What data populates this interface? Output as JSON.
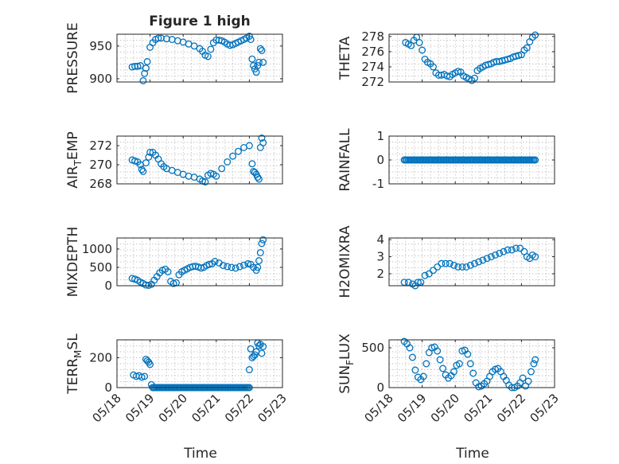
{
  "figure": {
    "title": "Figure 1 high",
    "marker_color": "#0072bd",
    "xlabel": "Time",
    "xticks": [
      "05/18",
      "05/19",
      "05/20",
      "05/21",
      "05/22",
      "05/23"
    ],
    "x_domain": [
      "05/18 00:00",
      "05/23 00:00"
    ]
  },
  "chart_data": [
    {
      "type": "scatter",
      "panel": "pressure",
      "ylabel": "PRESSURE",
      "ylim": [
        895,
        968
      ],
      "yticks": [
        900,
        950
      ],
      "grid": true,
      "x": [
        "05/18 11",
        "05/18 13",
        "05/18 15",
        "05/18 17",
        "05/18 19",
        "05/18 20",
        "05/18 21",
        "05/18 22",
        "05/19 00",
        "05/19 02",
        "05/19 04",
        "05/19 06",
        "05/19 08",
        "05/19 12",
        "05/19 16",
        "05/19 20",
        "05/20 00",
        "05/20 04",
        "05/20 08",
        "05/20 12",
        "05/20 14",
        "05/20 16",
        "05/20 18",
        "05/20 20",
        "05/20 22",
        "05/21 00",
        "05/21 02",
        "05/21 04",
        "05/21 06",
        "05/21 08",
        "05/21 10",
        "05/21 12",
        "05/21 14",
        "05/21 16",
        "05/21 18",
        "05/21 20",
        "05/21 22",
        "05/22 00",
        "05/22 01",
        "05/22 02",
        "05/22 03",
        "05/22 04",
        "05/22 05",
        "05/22 06",
        "05/22 07",
        "05/22 08",
        "05/22 09",
        "05/22 10"
      ],
      "y": [
        918,
        919,
        919,
        920,
        897,
        908,
        916,
        926,
        948,
        955,
        960,
        962,
        962,
        961,
        960,
        958,
        956,
        953,
        950,
        946,
        942,
        936,
        934,
        945,
        955,
        959,
        959,
        958,
        956,
        953,
        951,
        952,
        954,
        956,
        958,
        960,
        962,
        965,
        960,
        930,
        920,
        915,
        910,
        920,
        925,
        946,
        943,
        925
      ]
    },
    {
      "type": "scatter",
      "panel": "theta",
      "ylabel": "THETA",
      "ylim": [
        272,
        278.3
      ],
      "yticks": [
        272,
        274,
        276,
        278
      ],
      "grid": true,
      "x": [
        "05/18 12",
        "05/18 14",
        "05/18 16",
        "05/18 18",
        "05/18 20",
        "05/18 22",
        "05/19 00",
        "05/19 02",
        "05/19 04",
        "05/19 06",
        "05/19 08",
        "05/19 10",
        "05/19 12",
        "05/19 14",
        "05/19 16",
        "05/19 18",
        "05/19 20",
        "05/19 22",
        "05/20 00",
        "05/20 02",
        "05/20 04",
        "05/20 06",
        "05/20 08",
        "05/20 10",
        "05/20 12",
        "05/20 14",
        "05/20 16",
        "05/20 18",
        "05/20 20",
        "05/20 22",
        "05/21 00",
        "05/21 02",
        "05/21 04",
        "05/21 06",
        "05/21 08",
        "05/21 10",
        "05/21 12",
        "05/21 14",
        "05/21 16",
        "05/21 18",
        "05/21 20",
        "05/21 22",
        "05/22 00",
        "05/22 02",
        "05/22 04",
        "05/22 06",
        "05/22 08",
        "05/22 10"
      ],
      "y": [
        277.2,
        277.0,
        276.8,
        277.5,
        277.9,
        277.2,
        276.2,
        275.0,
        274.6,
        274.4,
        274.0,
        273.2,
        272.9,
        272.9,
        273.0,
        272.8,
        272.7,
        273.0,
        273.2,
        273.4,
        273.3,
        272.8,
        272.6,
        272.4,
        272.2,
        272.5,
        273.5,
        273.8,
        274.0,
        274.2,
        274.3,
        274.4,
        274.6,
        274.7,
        274.7,
        274.8,
        274.9,
        275.0,
        275.1,
        275.3,
        275.4,
        275.5,
        275.6,
        276.2,
        276.5,
        277.3,
        277.9,
        278.2
      ]
    },
    {
      "type": "scatter",
      "panel": "air_temp",
      "ylabel": "AIR_TEMP",
      "ylim": [
        268,
        273
      ],
      "yticks": [
        268,
        270,
        272
      ],
      "grid": true,
      "x": [
        "05/18 11",
        "05/18 13",
        "05/18 15",
        "05/18 17",
        "05/18 18",
        "05/18 19",
        "05/18 21",
        "05/18 23",
        "05/19 00",
        "05/19 02",
        "05/19 04",
        "05/19 06",
        "05/19 08",
        "05/19 10",
        "05/19 12",
        "05/19 16",
        "05/19 20",
        "05/20 00",
        "05/20 04",
        "05/20 08",
        "05/20 12",
        "05/20 14",
        "05/20 16",
        "05/20 18",
        "05/20 20",
        "05/20 22",
        "05/21 00",
        "05/21 04",
        "05/21 08",
        "05/21 12",
        "05/21 16",
        "05/21 20",
        "05/22 00",
        "05/22 02",
        "05/22 03",
        "05/22 04",
        "05/22 05",
        "05/22 06",
        "05/22 07",
        "05/22 08",
        "05/22 09",
        "05/22 10"
      ],
      "y": [
        270.5,
        270.4,
        270.3,
        270.0,
        269.5,
        269.3,
        270.2,
        270.8,
        271.3,
        271.3,
        271.0,
        270.6,
        270.1,
        269.8,
        269.6,
        269.4,
        269.2,
        269.0,
        268.8,
        268.7,
        268.5,
        268.3,
        268.2,
        268.9,
        269.1,
        269.0,
        268.8,
        269.6,
        270.3,
        270.9,
        271.4,
        271.8,
        272.0,
        270.1,
        269.3,
        269.2,
        269.0,
        268.7,
        268.5,
        271.8,
        272.8,
        272.3
      ]
    },
    {
      "type": "scatter",
      "panel": "rainfall",
      "ylabel": "RAINFALL",
      "ylim": [
        -1,
        1
      ],
      "yticks": [
        -1,
        0,
        1
      ],
      "grid": true,
      "x_range": [
        "05/18 11",
        "05/22 10"
      ],
      "sample_count": 96,
      "constant_value": 0
    },
    {
      "type": "scatter",
      "panel": "mixdepth",
      "ylabel": "MIXDEPTH",
      "ylim": [
        0,
        1300
      ],
      "yticks": [
        0,
        500,
        1000
      ],
      "grid": true,
      "x": [
        "05/18 11",
        "05/18 13",
        "05/18 15",
        "05/18 17",
        "05/18 19",
        "05/18 21",
        "05/18 23",
        "05/19 01",
        "05/19 03",
        "05/19 05",
        "05/19 07",
        "05/19 09",
        "05/19 11",
        "05/19 13",
        "05/19 15",
        "05/19 17",
        "05/19 19",
        "05/19 21",
        "05/19 23",
        "05/20 01",
        "05/20 03",
        "05/20 05",
        "05/20 07",
        "05/20 09",
        "05/20 11",
        "05/20 13",
        "05/20 15",
        "05/20 17",
        "05/20 19",
        "05/20 21",
        "05/20 23",
        "05/21 02",
        "05/21 05",
        "05/21 08",
        "05/21 11",
        "05/21 14",
        "05/21 17",
        "05/21 20",
        "05/21 23",
        "05/22 01",
        "05/22 03",
        "05/22 05",
        "05/22 06",
        "05/22 07",
        "05/22 08",
        "05/22 09",
        "05/22 10"
      ],
      "y": [
        200,
        180,
        150,
        100,
        60,
        20,
        10,
        40,
        150,
        250,
        350,
        420,
        450,
        380,
        120,
        60,
        80,
        300,
        380,
        420,
        460,
        500,
        520,
        530,
        510,
        480,
        500,
        550,
        580,
        600,
        660,
        620,
        550,
        520,
        500,
        480,
        520,
        560,
        600,
        580,
        500,
        420,
        500,
        680,
        900,
        1150,
        1250
      ]
    },
    {
      "type": "scatter",
      "panel": "h2omixra",
      "ylabel": "H2OMIXRA",
      "ylim": [
        1.3,
        4.1
      ],
      "yticks": [
        2,
        3,
        4
      ],
      "grid": true,
      "x": [
        "05/18 11",
        "05/18 14",
        "05/18 17",
        "05/18 19",
        "05/18 21",
        "05/18 23",
        "05/19 02",
        "05/19 05",
        "05/19 08",
        "05/19 11",
        "05/19 14",
        "05/19 17",
        "05/19 20",
        "05/19 23",
        "05/20 02",
        "05/20 05",
        "05/20 08",
        "05/20 11",
        "05/20 14",
        "05/20 17",
        "05/20 20",
        "05/20 23",
        "05/21 02",
        "05/21 05",
        "05/21 08",
        "05/21 11",
        "05/21 14",
        "05/21 17",
        "05/21 20",
        "05/21 23",
        "05/22 02",
        "05/22 04",
        "05/22 06",
        "05/22 08",
        "05/22 10"
      ],
      "y": [
        1.5,
        1.5,
        1.4,
        1.3,
        1.5,
        1.5,
        1.9,
        2.0,
        2.2,
        2.4,
        2.6,
        2.6,
        2.6,
        2.5,
        2.4,
        2.4,
        2.4,
        2.5,
        2.6,
        2.7,
        2.8,
        2.9,
        3.0,
        3.1,
        3.2,
        3.3,
        3.4,
        3.4,
        3.5,
        3.5,
        3.3,
        3.0,
        2.9,
        3.1,
        3.0
      ]
    },
    {
      "type": "scatter",
      "panel": "terr_msl",
      "ylabel": "TERR_MSL",
      "ylim": [
        0,
        320
      ],
      "yticks": [
        0,
        200
      ],
      "grid": true,
      "x": [
        "05/18 12",
        "05/18 14",
        "05/18 16",
        "05/18 18",
        "05/18 20",
        "05/18 21",
        "05/18 22",
        "05/18 23",
        "05/19 00",
        "05/19 01",
        "05/19 02",
        "05/22 00",
        "05/22 01",
        "05/22 02",
        "05/22 03",
        "05/22 04",
        "05/22 05",
        "05/22 06",
        "05/22 07",
        "05/22 08",
        "05/22 09",
        "05/22 10"
      ],
      "y": [
        85,
        75,
        80,
        70,
        75,
        190,
        180,
        170,
        155,
        20,
        0,
        120,
        260,
        200,
        210,
        220,
        240,
        300,
        280,
        290,
        230,
        275
      ],
      "zero_run": [
        "05/19 02",
        "05/22 00"
      ]
    },
    {
      "type": "scatter",
      "panel": "sun_flux",
      "ylabel": "SUN_FLUX",
      "ylim": [
        0,
        600
      ],
      "yticks": [
        0,
        500
      ],
      "grid": true,
      "x": [
        "05/18 11",
        "05/18 13",
        "05/18 15",
        "05/18 17",
        "05/18 19",
        "05/18 21",
        "05/18 23",
        "05/19 01",
        "05/19 03",
        "05/19 05",
        "05/19 07",
        "05/19 09",
        "05/19 11",
        "05/19 13",
        "05/19 15",
        "05/19 17",
        "05/19 19",
        "05/19 21",
        "05/19 23",
        "05/20 01",
        "05/20 03",
        "05/20 05",
        "05/20 07",
        "05/20 09",
        "05/20 11",
        "05/20 13",
        "05/20 15",
        "05/20 17",
        "05/20 19",
        "05/20 21",
        "05/20 23",
        "05/21 01",
        "05/21 03",
        "05/21 05",
        "05/21 07",
        "05/21 09",
        "05/21 11",
        "05/21 13",
        "05/21 15",
        "05/21 17",
        "05/21 19",
        "05/21 21",
        "05/21 23",
        "05/22 01",
        "05/22 03",
        "05/22 05",
        "05/22 07",
        "05/22 09",
        "05/22 10"
      ],
      "y": [
        580,
        550,
        500,
        380,
        220,
        130,
        100,
        140,
        300,
        440,
        500,
        510,
        460,
        350,
        240,
        160,
        120,
        150,
        200,
        280,
        300,
        460,
        470,
        420,
        300,
        180,
        60,
        10,
        20,
        50,
        80,
        140,
        200,
        230,
        240,
        200,
        140,
        90,
        30,
        0,
        0,
        20,
        60,
        120,
        20,
        80,
        200,
        300,
        350
      ]
    }
  ]
}
